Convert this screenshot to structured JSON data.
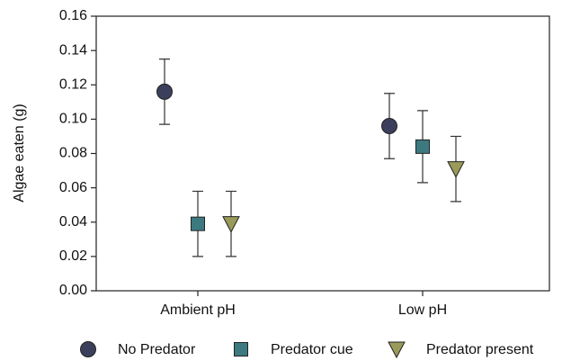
{
  "chart_data": {
    "type": "dotplot",
    "y_label": "Algae eaten (g)",
    "categories": [
      "Ambient pH",
      "Low pH"
    ],
    "series": [
      {
        "name": "No Predator",
        "marker": "circle",
        "color": "#3b3f5c",
        "values": [
          0.116,
          0.096
        ],
        "errors": [
          0.019,
          0.019
        ]
      },
      {
        "name": "Predator cue",
        "marker": "square",
        "color": "#3d7a80",
        "values": [
          0.039,
          0.084
        ],
        "errors": [
          0.019,
          0.021
        ]
      },
      {
        "name": "Predator present",
        "marker": "triangle-down",
        "color": "#9a9a5a",
        "values": [
          0.039,
          0.071
        ],
        "errors": [
          0.019,
          0.019
        ]
      }
    ],
    "ylim": [
      0,
      0.16
    ],
    "yticks": [
      {
        "value": 0,
        "label": "0.00"
      },
      {
        "value": 0.02,
        "label": "0.02"
      },
      {
        "value": 0.04,
        "label": "0.04"
      },
      {
        "value": 0.06,
        "label": "0.06"
      },
      {
        "value": 0.08,
        "label": "0.08"
      },
      {
        "value": 0.1,
        "label": "0.10"
      },
      {
        "value": 0.12,
        "label": "0.12"
      },
      {
        "value": 0.14,
        "label": "0.14"
      },
      {
        "value": 0.16,
        "label": "0.16"
      }
    ],
    "legend": "bottom"
  }
}
